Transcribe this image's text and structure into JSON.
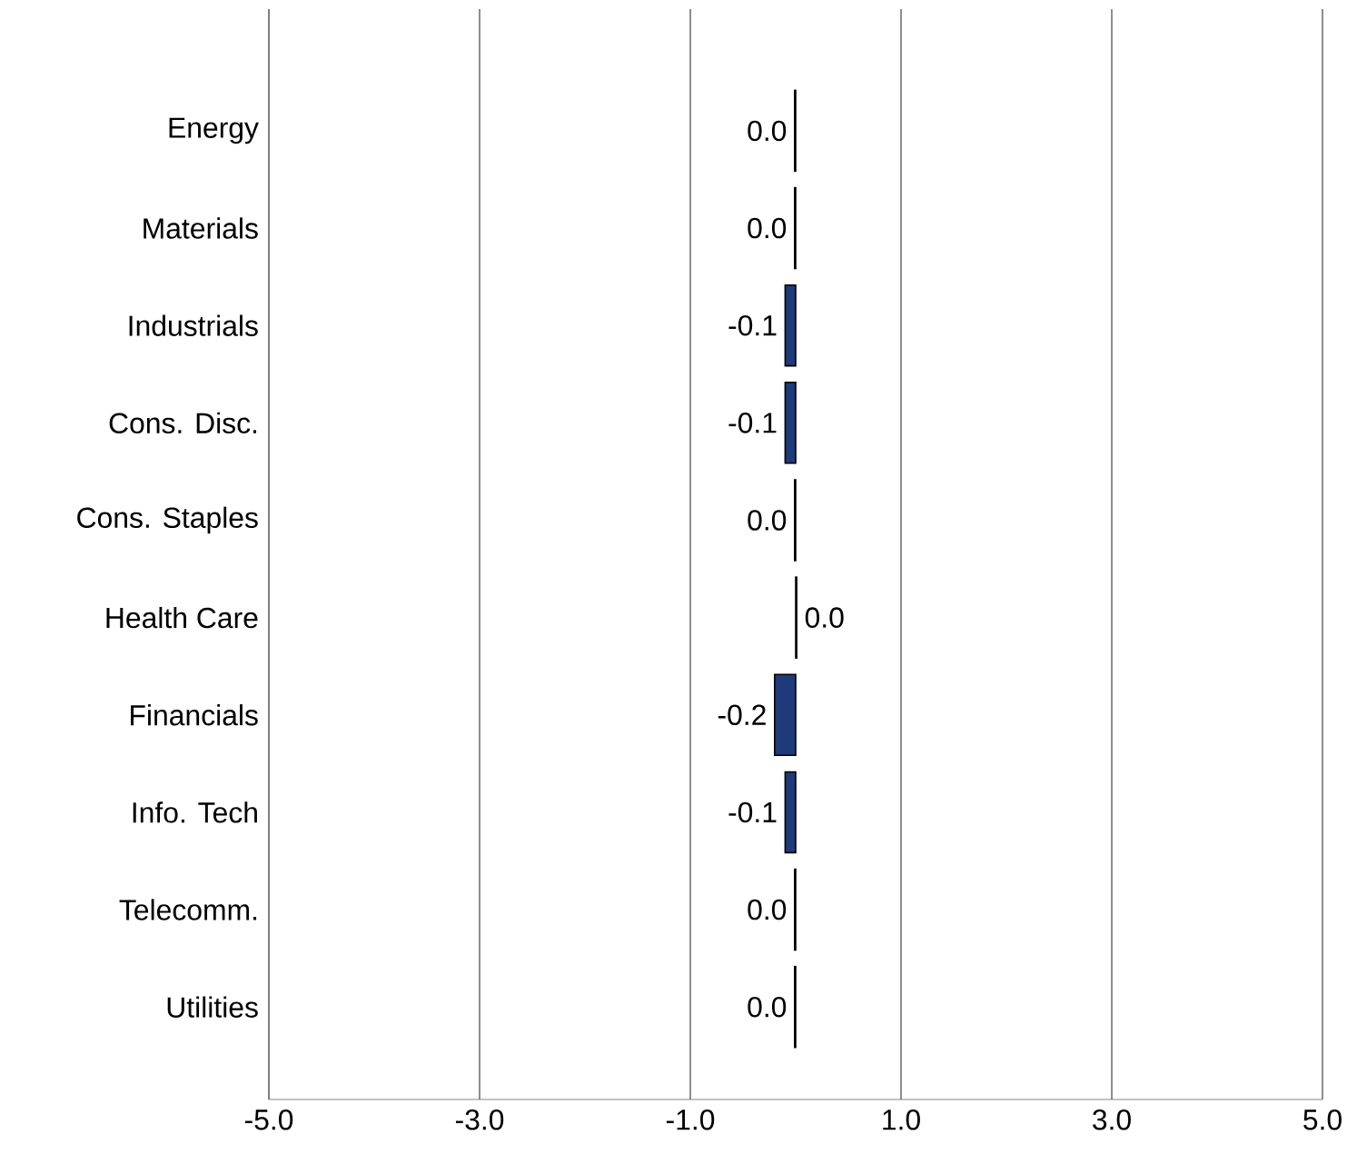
{
  "chart_data": {
    "type": "bar",
    "orientation": "horizontal",
    "categories": [
      "Energy",
      "Materials",
      "Industrials",
      "Cons. Disc.",
      "Cons. Staples",
      "Health Care",
      "Financials",
      "Info. Tech",
      "Telecomm.",
      "Utilities"
    ],
    "values": [
      -0.01,
      -0.01,
      -0.1,
      -0.1,
      -0.01,
      0.01,
      -0.2,
      -0.1,
      -0.01,
      -0.01
    ],
    "value_labels": [
      "0.0",
      "0.0",
      "-0.1",
      "-0.1",
      "0.0",
      "0.0",
      "-0.2",
      "-0.1",
      "0.0",
      "0.0"
    ],
    "color": "#1f3a7a",
    "xlim": [
      -5,
      5
    ],
    "xticks": [
      {
        "value": -5,
        "label": "-5.0"
      },
      {
        "value": -3,
        "label": "-3.0"
      },
      {
        "value": -1,
        "label": "-1.0"
      },
      {
        "value": 1,
        "label": "1.0"
      },
      {
        "value": 3,
        "label": "3.0"
      },
      {
        "value": 5,
        "label": "5.0"
      }
    ],
    "grid": "x"
  }
}
